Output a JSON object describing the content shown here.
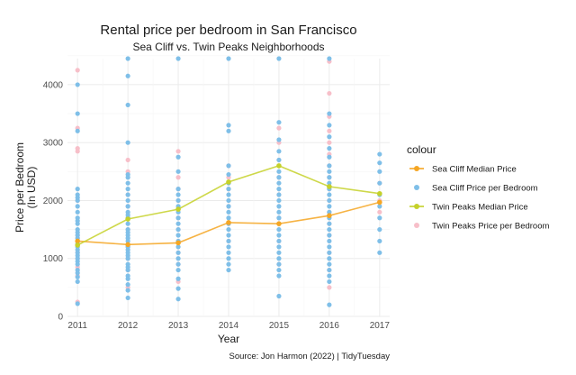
{
  "chart_data": {
    "type": "scatter",
    "title": "Rental price per bedroom in San Francisco",
    "subtitle": "Sea Cliff vs. Twin Peaks Neighborhoods",
    "xlabel": "Year",
    "ylabel": "Price per Bedroom\n(In USD)",
    "caption": "Source: Jon Harmon (2022) | TidyTuesday",
    "legend_title": "colour",
    "legend_position": "right",
    "x_ticks": [
      2011,
      2012,
      2013,
      2014,
      2015,
      2016,
      2017
    ],
    "y_ticks": [
      0,
      1000,
      2000,
      3000,
      4000
    ],
    "xlim": [
      2010.8,
      2017.2
    ],
    "ylim": [
      0,
      4450
    ],
    "grid": true,
    "series": [
      {
        "name": "Sea Cliff Median Price",
        "kind": "line",
        "color": "#f5a623",
        "x": [
          2011,
          2012,
          2013,
          2014,
          2015,
          2016,
          2017
        ],
        "y": [
          1300,
          1240,
          1270,
          1620,
          1600,
          1740,
          1970
        ]
      },
      {
        "name": "Sea Cliff Price per Bedroom",
        "kind": "points",
        "color": "#7fbfe8",
        "x": [
          2011,
          2011,
          2011,
          2011,
          2011,
          2011,
          2011,
          2011,
          2011,
          2011,
          2011,
          2011,
          2011,
          2011,
          2011,
          2011,
          2011,
          2011,
          2011,
          2011,
          2011,
          2011,
          2011,
          2011,
          2011,
          2011,
          2011,
          2011,
          2011,
          2012,
          2012,
          2012,
          2012,
          2012,
          2012,
          2012,
          2012,
          2012,
          2012,
          2012,
          2012,
          2012,
          2012,
          2012,
          2012,
          2012,
          2012,
          2012,
          2012,
          2012,
          2012,
          2012,
          2012,
          2012,
          2012,
          2012,
          2012,
          2012,
          2012,
          2012,
          2012,
          2012,
          2013,
          2013,
          2013,
          2013,
          2013,
          2013,
          2013,
          2013,
          2013,
          2013,
          2013,
          2013,
          2013,
          2013,
          2013,
          2013,
          2013,
          2013,
          2013,
          2013,
          2013,
          2014,
          2014,
          2014,
          2014,
          2014,
          2014,
          2014,
          2014,
          2014,
          2014,
          2014,
          2014,
          2014,
          2014,
          2014,
          2014,
          2014,
          2014,
          2014,
          2014,
          2014,
          2015,
          2015,
          2015,
          2015,
          2015,
          2015,
          2015,
          2015,
          2015,
          2015,
          2015,
          2015,
          2015,
          2015,
          2015,
          2015,
          2015,
          2015,
          2015,
          2015,
          2015,
          2015,
          2015,
          2015,
          2015,
          2016,
          2016,
          2016,
          2016,
          2016,
          2016,
          2016,
          2016,
          2016,
          2016,
          2016,
          2016,
          2016,
          2016,
          2016,
          2016,
          2016,
          2016,
          2016,
          2016,
          2016,
          2016,
          2016,
          2016,
          2016,
          2016,
          2016,
          2016,
          2017,
          2017,
          2017,
          2017,
          2017,
          2017,
          2017,
          2017,
          2017,
          2017
        ],
        "y": [
          220,
          600,
          680,
          750,
          800,
          900,
          950,
          1000,
          1050,
          1100,
          1150,
          1200,
          1250,
          1350,
          1400,
          1450,
          1500,
          1600,
          1650,
          1700,
          1800,
          1900,
          2000,
          2050,
          2100,
          2200,
          3200,
          3500,
          4000,
          320,
          450,
          550,
          650,
          700,
          800,
          850,
          900,
          1000,
          1100,
          1150,
          1200,
          1300,
          1400,
          1450,
          1500,
          1600,
          1700,
          1800,
          1900,
          2000,
          2100,
          2200,
          2300,
          2400,
          2450,
          3000,
          3650,
          4150,
          4450,
          1750,
          1350,
          1050,
          300,
          480,
          650,
          800,
          900,
          1000,
          1100,
          1200,
          1300,
          1400,
          1500,
          1600,
          1700,
          1800,
          1900,
          2000,
          2100,
          2200,
          2500,
          2750,
          4450,
          800,
          900,
          1000,
          1100,
          1200,
          1300,
          1400,
          1500,
          1600,
          1700,
          1800,
          1900,
          2000,
          2100,
          2200,
          2300,
          2450,
          2600,
          3200,
          3300,
          4450,
          350,
          700,
          800,
          900,
          1000,
          1100,
          1200,
          1300,
          1400,
          1500,
          1600,
          1700,
          1800,
          1900,
          2000,
          2100,
          2200,
          2300,
          2400,
          2500,
          2700,
          2850,
          3050,
          3350,
          4450,
          200,
          600,
          700,
          800,
          900,
          1000,
          1100,
          1200,
          1300,
          1400,
          1500,
          1600,
          1700,
          1800,
          1900,
          2000,
          2100,
          2200,
          2300,
          2400,
          2500,
          2600,
          2750,
          2900,
          3100,
          3300,
          3500,
          4450,
          1100,
          1300,
          1500,
          1700,
          1900,
          2100,
          2300,
          2500,
          2650,
          2800
        ]
      },
      {
        "name": "Twin Peaks Median Price",
        "kind": "line",
        "color": "#c5d12a",
        "x": [
          2011,
          2012,
          2013,
          2014,
          2015,
          2016,
          2017
        ],
        "y": [
          1230,
          1680,
          1850,
          2320,
          2600,
          2240,
          2120
        ]
      },
      {
        "name": "Twin Peaks Price per Bedroom",
        "kind": "points",
        "color": "#f7bfc9",
        "x": [
          2011,
          2011,
          2011,
          2011,
          2011,
          2011,
          2011,
          2011,
          2011,
          2011,
          2011,
          2011,
          2012,
          2012,
          2012,
          2012,
          2012,
          2012,
          2012,
          2012,
          2012,
          2012,
          2013,
          2013,
          2013,
          2013,
          2013,
          2013,
          2013,
          2013,
          2013,
          2013,
          2013,
          2014,
          2014,
          2014,
          2014,
          2014,
          2014,
          2015,
          2015,
          2015,
          2015,
          2015,
          2015,
          2015,
          2015,
          2016,
          2016,
          2016,
          2016,
          2016,
          2016,
          2016,
          2016,
          2016,
          2016,
          2016,
          2016,
          2016,
          2016,
          2016,
          2016,
          2017,
          2017,
          2017
        ],
        "y": [
          250,
          700,
          850,
          1000,
          1100,
          1250,
          1400,
          2000,
          2850,
          2900,
          3250,
          4250,
          500,
          800,
          1000,
          1200,
          1500,
          1700,
          1900,
          2100,
          2500,
          2700,
          600,
          900,
          1100,
          1300,
          1500,
          1700,
          1850,
          2000,
          2200,
          2400,
          2850,
          1300,
          1600,
          1900,
          2200,
          2400,
          2600,
          900,
          1300,
          1700,
          2100,
          2400,
          2700,
          3000,
          3250,
          500,
          800,
          1100,
          1400,
          1600,
          1800,
          2000,
          2200,
          2400,
          2600,
          2800,
          3000,
          3200,
          3450,
          3850,
          4400,
          1800,
          2000,
          2300
        ]
      }
    ]
  }
}
